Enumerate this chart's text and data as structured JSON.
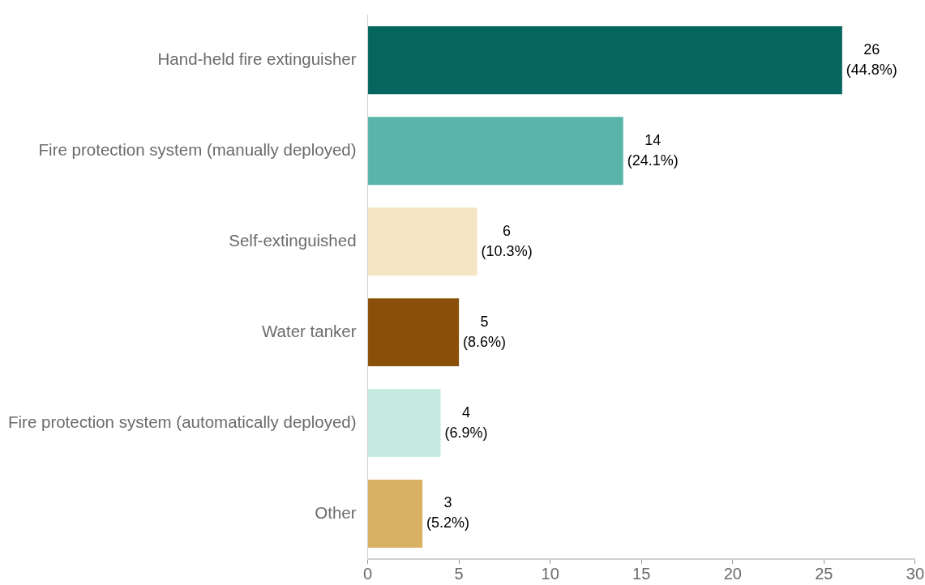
{
  "chart_data": {
    "type": "bar",
    "orientation": "horizontal",
    "categories": [
      "Hand-held fire extinguisher",
      "Fire protection system (manually deployed)",
      "Self-extinguished",
      "Water tanker",
      "Fire protection system (automatically deployed)",
      "Other"
    ],
    "values": [
      26,
      14,
      6,
      5,
      4,
      3
    ],
    "colors": [
      "#04665f",
      "#5bb4aa",
      "#f5e6c3",
      "#8a4f08",
      "#c7eae3",
      "#d8b165"
    ],
    "value_labels": [
      "26\n(44.8%)",
      "14\n(24.1%)",
      "6\n(10.3%)",
      "5\n(8.6%)",
      "4\n(6.9%)",
      "3\n(5.2%)"
    ],
    "xlim": [
      0,
      30
    ],
    "xticks": [
      0,
      5,
      10,
      15,
      20,
      25,
      30
    ]
  }
}
